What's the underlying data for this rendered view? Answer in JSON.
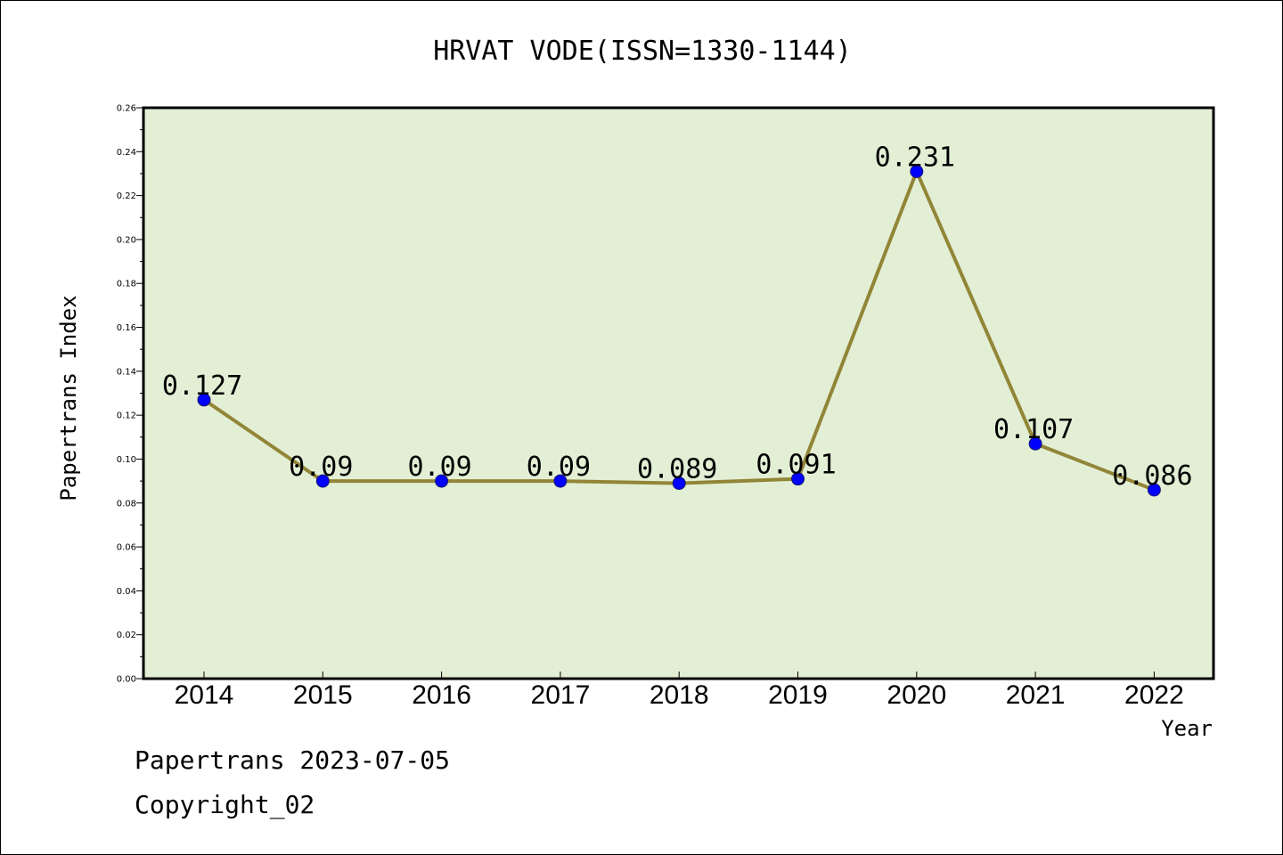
{
  "chart_data": {
    "type": "line",
    "title": "HRVAT VODE(ISSN=1330-1144)",
    "xlabel": "Year",
    "ylabel": "Papertrans Index",
    "categories": [
      "2014",
      "2015",
      "2016",
      "2017",
      "2018",
      "2019",
      "2020",
      "2021",
      "2022"
    ],
    "series": [
      {
        "values": [
          0.127,
          0.09,
          0.09,
          0.09,
          0.089,
          0.091,
          0.231,
          0.107,
          0.086
        ],
        "data_labels": [
          "0.127",
          "0.09",
          "0.09",
          "0.09",
          "0.089",
          "0.091",
          "0.231",
          "0.107",
          "0.086"
        ],
        "line_color": "#928537",
        "marker_color": "#0000ff"
      }
    ],
    "ylim": [
      0,
      0.26
    ],
    "yticks": [
      "0.00",
      "0.02",
      "0.04",
      "0.06",
      "0.08",
      "0.10",
      "0.12",
      "0.14",
      "0.16",
      "0.18",
      "0.20",
      "0.22",
      "0.24",
      "0.26"
    ],
    "grid": false,
    "plot_background": "#e2efd5"
  },
  "footer": {
    "line1": "Papertrans 2023-07-05",
    "line2": "Copyright_02"
  }
}
